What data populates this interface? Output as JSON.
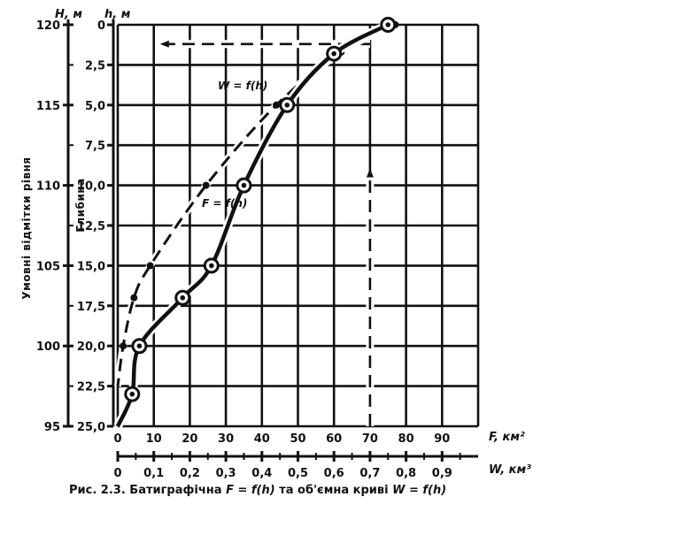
{
  "chart_data": {
    "type": "line",
    "caption": "Рис. 2.3. Батиграфічна F = f(h) та об'ємна криві W = f(h)",
    "caption_parts": {
      "prefix": "Рис. 2.3.  Батиграфічна ",
      "f_formula": "F = f(h)",
      "middle": " та об'ємна криві ",
      "w_formula": "W = f(h)"
    },
    "axes": {
      "H": {
        "label": "Н, м",
        "title": "Умовні відмітки рівня",
        "ticks": [
          "95",
          "100",
          "105",
          "110",
          "115",
          "120"
        ],
        "range": [
          95,
          120
        ]
      },
      "h": {
        "label": "h, м",
        "title": "Глибина",
        "ticks": [
          "25,0",
          "22,5",
          "20,0",
          "17,5",
          "15,0",
          "12,5",
          "10,0",
          "7,5",
          "5,0",
          "2,5",
          "0"
        ],
        "range": [
          0,
          25
        ],
        "inverted": true
      },
      "F": {
        "label": "F, км²",
        "ticks": [
          "0",
          "10",
          "20",
          "30",
          "40",
          "50",
          "60",
          "70",
          "80",
          "90"
        ],
        "range": [
          0,
          100
        ]
      },
      "W": {
        "label": "W, км³",
        "ticks": [
          "0",
          "0,1",
          "0,2",
          "0,3",
          "0,4",
          "0,5",
          "0,6",
          "0,7",
          "0,8",
          "0,9"
        ],
        "range": [
          0,
          1.0
        ]
      }
    },
    "grid": true,
    "series": [
      {
        "name": "F = f(h)",
        "style": "solid",
        "x_axis": "F",
        "points": [
          {
            "F": 75,
            "h": 0
          },
          {
            "F": 60,
            "h": 1.8
          },
          {
            "F": 47,
            "h": 5.0
          },
          {
            "F": 35,
            "h": 10.0
          },
          {
            "F": 26,
            "h": 15.0
          },
          {
            "F": 18,
            "h": 17.0
          },
          {
            "F": 6,
            "h": 20.0
          },
          {
            "F": 4,
            "h": 23.0
          },
          {
            "F": 0,
            "h": 25.0
          }
        ],
        "markers": [
          {
            "F": 75,
            "h": 0
          },
          {
            "F": 60,
            "h": 1.8
          },
          {
            "F": 47,
            "h": 5.0
          },
          {
            "F": 35,
            "h": 10.0
          },
          {
            "F": 26,
            "h": 15.0
          },
          {
            "F": 18,
            "h": 17.0
          },
          {
            "F": 6,
            "h": 20.0
          },
          {
            "F": 4,
            "h": 23.0
          }
        ]
      },
      {
        "name": "W = f(h)",
        "style": "dashed",
        "x_axis": "W",
        "points": [
          {
            "W": 0.77,
            "h": 0
          },
          {
            "W": 0.62,
            "h": 1.7
          },
          {
            "W": 0.44,
            "h": 5.0
          },
          {
            "W": 0.245,
            "h": 10.0
          },
          {
            "W": 0.09,
            "h": 15.0
          },
          {
            "W": 0.045,
            "h": 17.0
          },
          {
            "W": 0.015,
            "h": 20.0
          },
          {
            "W": 0.0,
            "h": 22.5
          }
        ],
        "markers": [
          {
            "W": 0.77,
            "h": 0
          },
          {
            "W": 0.62,
            "h": 1.7
          },
          {
            "W": 0.44,
            "h": 5.0
          },
          {
            "W": 0.245,
            "h": 10.0
          },
          {
            "W": 0.09,
            "h": 15.0
          },
          {
            "W": 0.045,
            "h": 17.0
          },
          {
            "W": 0.015,
            "h": 20.0
          }
        ]
      }
    ],
    "annotations": [
      {
        "type": "dashed-arrow",
        "from": {
          "F": 70,
          "h": 25
        },
        "to": {
          "F": 70,
          "h": 9.0
        },
        "direction": "up"
      },
      {
        "type": "dashed-arrow",
        "from": {
          "F": 70,
          "h": 1.2
        },
        "to": {
          "F": 12,
          "h": 1.2
        },
        "direction": "left"
      }
    ]
  }
}
